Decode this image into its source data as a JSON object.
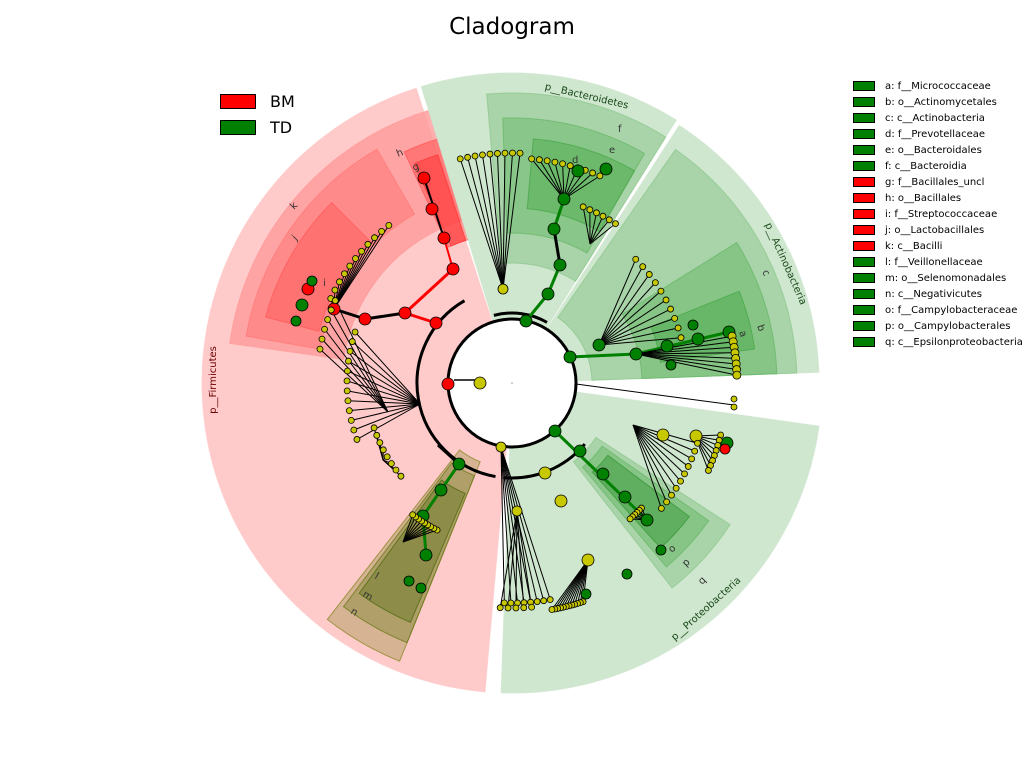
{
  "title": "Cladogram",
  "colors": {
    "BM": "#ff0000",
    "TD": "#008000",
    "neutral": "#c8c800",
    "bm_fill": "#ffcaca",
    "td_fill": "#cfe6cf"
  },
  "groups_legend": [
    {
      "label": "BM",
      "group": "BM"
    },
    {
      "label": "TD",
      "group": "TD"
    }
  ],
  "clade_legend": [
    {
      "key": "a",
      "label": "a: f__Micrococcaceae",
      "group": "TD"
    },
    {
      "key": "b",
      "label": "b: o__Actinomycetales",
      "group": "TD"
    },
    {
      "key": "c",
      "label": "c: c__Actinobacteria",
      "group": "TD"
    },
    {
      "key": "d",
      "label": "d: f__Prevotellaceae",
      "group": "TD"
    },
    {
      "key": "e",
      "label": "e: o__Bacteroidales",
      "group": "TD"
    },
    {
      "key": "f",
      "label": "f: c__Bacteroidia",
      "group": "TD"
    },
    {
      "key": "g",
      "label": "g: f__Bacillales_uncl",
      "group": "BM"
    },
    {
      "key": "h",
      "label": "h: o__Bacillales",
      "group": "BM"
    },
    {
      "key": "i",
      "label": "i: f__Streptococcaceae",
      "group": "BM"
    },
    {
      "key": "j",
      "label": "j: o__Lactobacillales",
      "group": "BM"
    },
    {
      "key": "k",
      "label": "k: c__Bacilli",
      "group": "BM"
    },
    {
      "key": "l",
      "label": "l: f__Veillonellaceae",
      "group": "TD"
    },
    {
      "key": "m",
      "label": "m: o__Selenomonadales",
      "group": "TD"
    },
    {
      "key": "n",
      "label": "n: c__Negativicutes",
      "group": "TD"
    },
    {
      "key": "o",
      "label": "o: f__Campylobacteraceae",
      "group": "TD"
    },
    {
      "key": "p",
      "label": "p: o__Campylobacterales",
      "group": "TD"
    },
    {
      "key": "q",
      "label": "q: c__Epsilonproteobacteria",
      "group": "TD"
    }
  ],
  "phyla": [
    {
      "label": "p__Bacteroidetes",
      "group": "TD"
    },
    {
      "label": "p__Actinobacteria",
      "group": "TD"
    },
    {
      "label": "p__Proteobacteria",
      "group": "TD"
    },
    {
      "label": "p__Firmicutes",
      "group": "BM"
    }
  ],
  "clade_letters": [
    "a",
    "b",
    "c",
    "d",
    "e",
    "f",
    "g",
    "h",
    "i",
    "j",
    "k",
    "l",
    "m",
    "n",
    "o",
    "p",
    "q"
  ]
}
